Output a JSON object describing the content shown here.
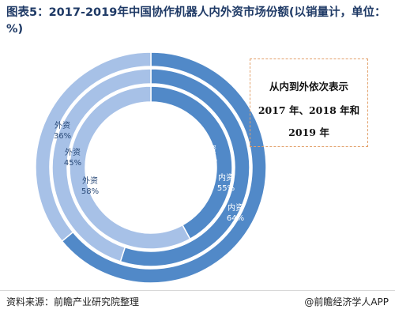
{
  "title": "图表5：2017-2019年中国协作机器人内外资市场份额(以销量计，单位：%)",
  "note": {
    "line1": "从内到外依次表示",
    "line2": "2017 年、2018 年和",
    "line3": "2019 年"
  },
  "footer": {
    "source": "资料来源：前瞻产业研究院整理",
    "brand": "@前瞻经济学人APP"
  },
  "colors": {
    "domestic": "#5189c8",
    "foreign": "#a7c1e7",
    "title": "#1f3a66"
  },
  "chart_data": {
    "type": "pie",
    "style": "nested-donut",
    "title": "图表5：2017-2019年中国协作机器人内外资市场份额(以销量计，单位：%)",
    "rings": [
      {
        "name": "2017 年",
        "slices": [
          {
            "label": "内资",
            "value": 42
          },
          {
            "label": "外资",
            "value": 58
          }
        ]
      },
      {
        "name": "2018 年",
        "slices": [
          {
            "label": "内资",
            "value": 55
          },
          {
            "label": "外资",
            "value": 45
          }
        ]
      },
      {
        "name": "2019 年",
        "slices": [
          {
            "label": "内资",
            "value": 64
          },
          {
            "label": "外资",
            "value": 36
          }
        ]
      }
    ]
  }
}
